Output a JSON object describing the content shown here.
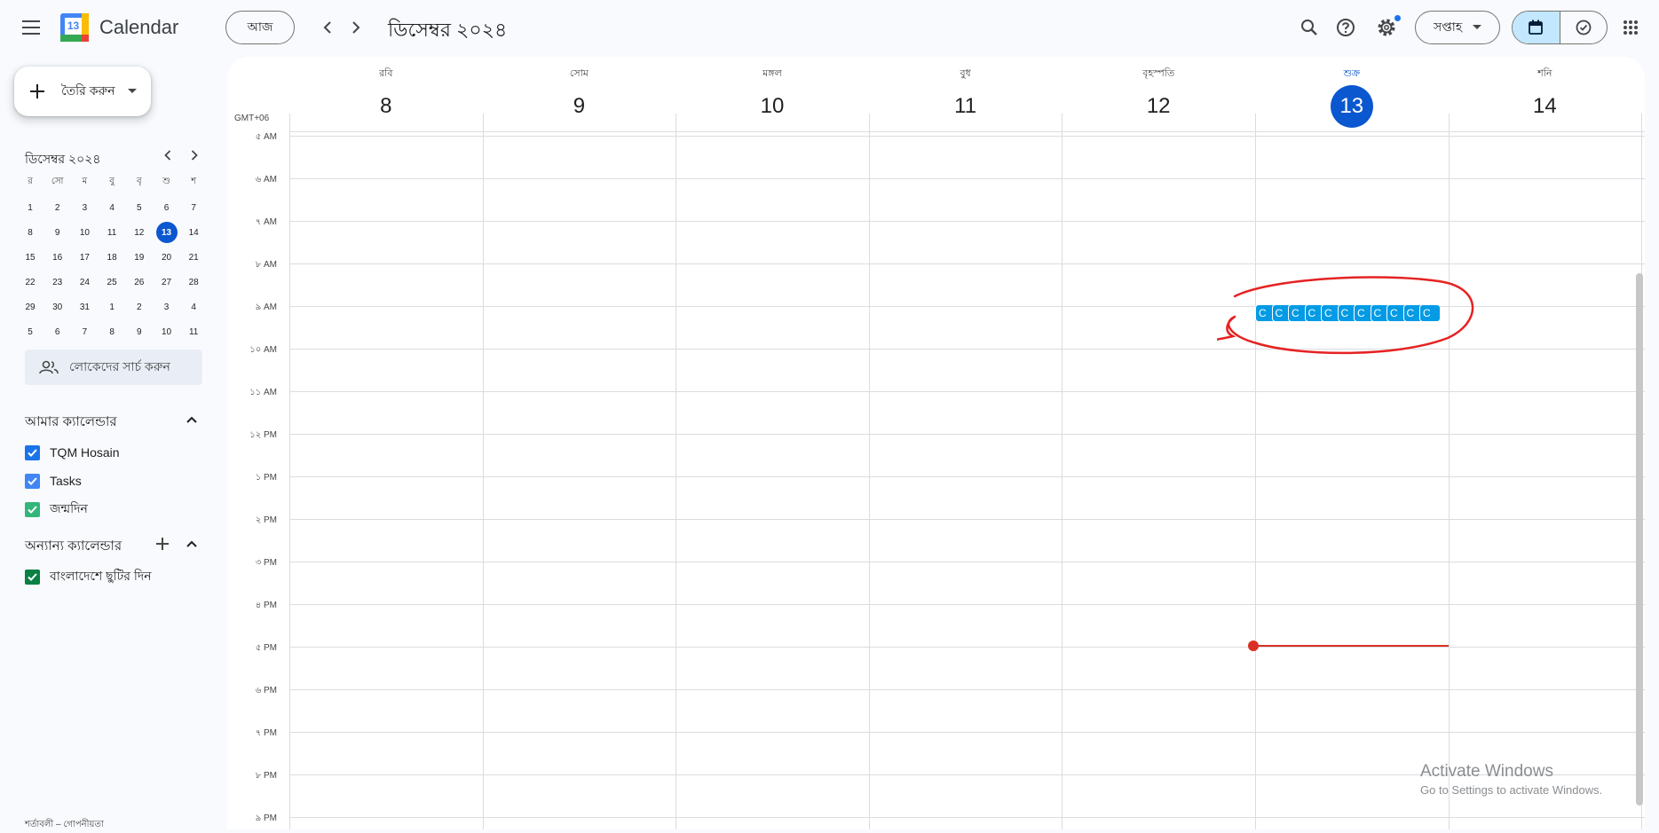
{
  "header": {
    "menu_icon": "hamburger-icon",
    "logo_day": "13",
    "app_name": "Calendar",
    "today_label": "আজ",
    "period_title": "ডিসেম্বর ২০২৪",
    "view_label": "সপ্তাহ",
    "icons": [
      "search-icon",
      "help-icon",
      "settings-icon",
      "calendar-view-icon",
      "tasks-view-icon",
      "apps-grid-icon"
    ]
  },
  "sidebar": {
    "create_label": "তৈরি করুন",
    "mini_calendar": {
      "title": "ডিসেম্বর ২০২৪",
      "weekdays": [
        "র",
        "সো",
        "ম",
        "বু",
        "বৃ",
        "শু",
        "শ"
      ],
      "weeks": [
        [
          "1",
          "2",
          "3",
          "4",
          "5",
          "6",
          "7"
        ],
        [
          "8",
          "9",
          "10",
          "11",
          "12",
          "13",
          "14"
        ],
        [
          "15",
          "16",
          "17",
          "18",
          "19",
          "20",
          "21"
        ],
        [
          "22",
          "23",
          "24",
          "25",
          "26",
          "27",
          "28"
        ],
        [
          "29",
          "30",
          "31",
          "1",
          "2",
          "3",
          "4"
        ],
        [
          "5",
          "6",
          "7",
          "8",
          "9",
          "10",
          "11"
        ]
      ],
      "today": "13"
    },
    "people_search_placeholder": "লোকেদের সার্চ করুন",
    "my_calendars": {
      "title": "আমার ক্যালেন্ডার",
      "items": [
        {
          "label": "TQM Hosain",
          "color": "#1a73e8"
        },
        {
          "label": "Tasks",
          "color": "#4285f4"
        },
        {
          "label": "জন্মদিন",
          "color": "#33b679"
        }
      ]
    },
    "other_calendars": {
      "title": "অন্যান্য ক্যালেন্ডার",
      "items": [
        {
          "label": "বাংলাদেশে ছুটির দিন",
          "color": "#0b8043"
        }
      ]
    },
    "footer_text": "শর্তাবলী – গোপনীয়তা"
  },
  "week": {
    "timezone": "GMT+06",
    "days": [
      {
        "name": "রবি",
        "num": "8"
      },
      {
        "name": "সোম",
        "num": "9"
      },
      {
        "name": "মঙ্গল",
        "num": "10"
      },
      {
        "name": "বুধ",
        "num": "11"
      },
      {
        "name": "বৃহস্পতি",
        "num": "12"
      },
      {
        "name": "শুক্র",
        "num": "13",
        "today": true
      },
      {
        "name": "শনি",
        "num": "14"
      }
    ],
    "hours": [
      "৫ AM",
      "৬ AM",
      "৭ AM",
      "৮ AM",
      "৯ AM",
      "১০ AM",
      "১১ AM",
      "১২ PM",
      "১ PM",
      "২ PM",
      "৩ PM",
      "৪ PM",
      "৫ PM",
      "৬ PM",
      "৭ PM",
      "৮ PM",
      "৯ PM"
    ],
    "events": [
      "C",
      "C",
      "C",
      "C",
      "C",
      "C",
      "C",
      "C",
      "C",
      "C",
      "C"
    ],
    "event_color": "#039be5",
    "now_line_color": "#d93025",
    "annotation_color": "#e52222"
  },
  "watermark": {
    "title": "Activate Windows",
    "subtitle": "Go to Settings to activate Windows."
  }
}
